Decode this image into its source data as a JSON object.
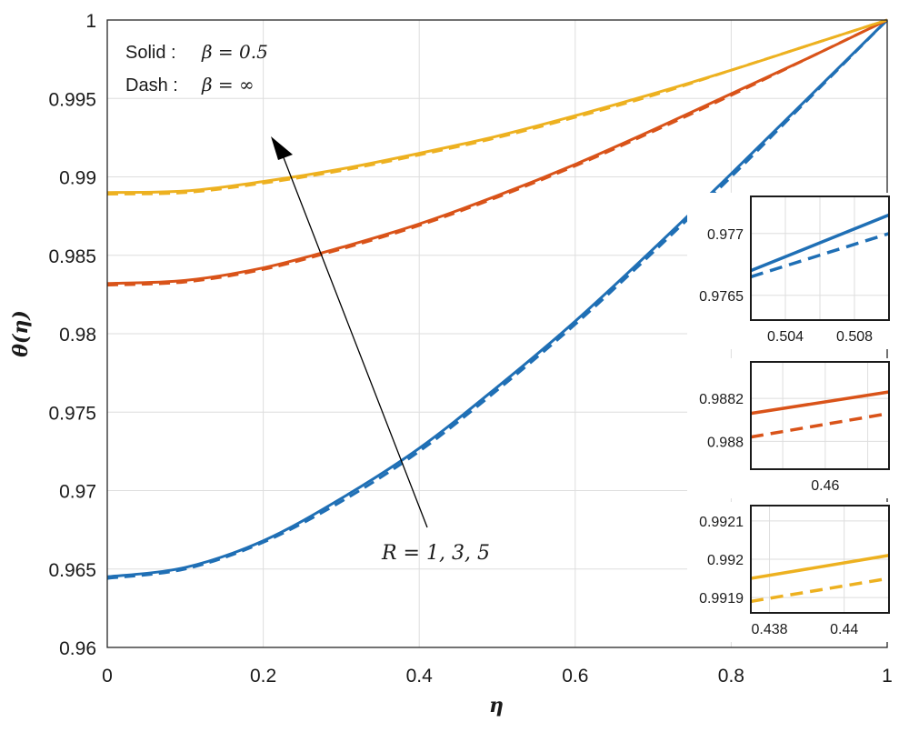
{
  "chart_data": {
    "type": "line",
    "title": "",
    "xlabel": "η",
    "ylabel": "θ(η)",
    "xlim": [
      0,
      1
    ],
    "ylim": [
      0.96,
      1
    ],
    "xticks": [
      "0",
      "0.2",
      "0.4",
      "0.6",
      "0.8",
      "1"
    ],
    "yticks": [
      "0.96",
      "0.965",
      "0.97",
      "0.975",
      "0.98",
      "0.985",
      "0.99",
      "0.995",
      "1"
    ],
    "grid": true,
    "legend": {
      "lines": [
        {
          "label": "Solid :",
          "value": "β = 0.5"
        },
        {
          "label": "Dash :",
          "value": "β = ∞"
        }
      ],
      "position": "top-left"
    },
    "annotation": {
      "text": "R = 1, 3, 5",
      "direction": "increasing R shifts curves upward"
    },
    "x": [
      0,
      0.1,
      0.2,
      0.3,
      0.4,
      0.5,
      0.6,
      0.7,
      0.8,
      0.9,
      1.0
    ],
    "series": [
      {
        "name": "R = 1, β = 0.5",
        "color": "#1f6fb5",
        "style": "solid",
        "values": [
          0.9645,
          0.9651,
          0.9668,
          0.9695,
          0.9727,
          0.9766,
          0.9808,
          0.9854,
          0.9902,
          0.9951,
          1.0
        ]
      },
      {
        "name": "R = 1, β = ∞",
        "color": "#1f6fb5",
        "style": "dash",
        "values": [
          0.9644,
          0.965,
          0.9667,
          0.9693,
          0.9725,
          0.9764,
          0.9806,
          0.9852,
          0.99,
          0.995,
          1.0
        ]
      },
      {
        "name": "R = 3, β = 0.5",
        "color": "#d95319",
        "style": "solid",
        "values": [
          0.9832,
          0.9834,
          0.9842,
          0.9855,
          0.987,
          0.9888,
          0.9908,
          0.993,
          0.9953,
          0.9976,
          1.0
        ]
      },
      {
        "name": "R = 3, β = ∞",
        "color": "#d95319",
        "style": "dash",
        "values": [
          0.9831,
          0.9833,
          0.9841,
          0.9854,
          0.9869,
          0.9887,
          0.9907,
          0.9929,
          0.9952,
          0.9976,
          1.0
        ]
      },
      {
        "name": "R = 5, β = 0.5",
        "color": "#edb120",
        "style": "solid",
        "values": [
          0.989,
          0.9891,
          0.9897,
          0.9905,
          0.9915,
          0.9926,
          0.9939,
          0.9953,
          0.9968,
          0.9984,
          1.0
        ]
      },
      {
        "name": "R = 5, β = ∞",
        "color": "#edb120",
        "style": "dash",
        "values": [
          0.9889,
          0.989,
          0.9896,
          0.9904,
          0.9914,
          0.9925,
          0.9938,
          0.9952,
          0.9968,
          0.9984,
          1.0
        ]
      }
    ],
    "insets": [
      {
        "xlim": [
          0.502,
          0.51
        ],
        "ylim": [
          0.9763,
          0.9773
        ],
        "xticks": [
          "0.504",
          "0.508"
        ],
        "yticks": [
          "0.9765",
          "0.977"
        ],
        "xtick_values": [
          0.504,
          0.508
        ],
        "ytick_values": [
          0.9765,
          0.977
        ],
        "grid_x": [
          0.504,
          0.506,
          0.508
        ],
        "grid_y": [
          0.9765,
          0.977
        ],
        "series": [
          {
            "color": "#1f6fb5",
            "style": "solid",
            "x": [
              0.502,
              0.51
            ],
            "values": [
              0.9767,
              0.97715
            ]
          },
          {
            "color": "#1f6fb5",
            "style": "dash",
            "x": [
              0.502,
              0.51
            ],
            "values": [
              0.97665,
              0.977
            ]
          }
        ]
      },
      {
        "xlim": [
          0.453,
          0.466
        ],
        "ylim": [
          0.98787,
          0.98837
        ],
        "xticks": [
          "0.46"
        ],
        "yticks": [
          "0.9882",
          "0.988"
        ],
        "xtick_values": [
          0.46
        ],
        "ytick_values": [
          0.9882,
          0.988
        ],
        "grid_x": [
          0.456,
          0.46,
          0.464
        ],
        "grid_y": [
          0.988,
          0.9882
        ],
        "series": [
          {
            "color": "#d95319",
            "style": "solid",
            "x": [
              0.453,
              0.466
            ],
            "values": [
              0.98813,
              0.98823
            ]
          },
          {
            "color": "#d95319",
            "style": "dash",
            "x": [
              0.453,
              0.466
            ],
            "values": [
              0.98802,
              0.98813
            ]
          }
        ]
      },
      {
        "xlim": [
          0.4375,
          0.4412
        ],
        "ylim": [
          0.99186,
          0.99214
        ],
        "xticks": [
          "0.438",
          "0.44"
        ],
        "yticks": [
          "0.9921",
          "0.992",
          "0.9919"
        ],
        "xtick_values": [
          0.438,
          0.44
        ],
        "ytick_values": [
          0.9921,
          0.992,
          0.9919
        ],
        "grid_x": [
          0.438,
          0.44
        ],
        "grid_y": [
          0.9919,
          0.992,
          0.9921
        ],
        "series": [
          {
            "color": "#edb120",
            "style": "solid",
            "x": [
              0.4375,
              0.4412
            ],
            "values": [
              0.99195,
              0.99201
            ]
          },
          {
            "color": "#edb120",
            "style": "dash",
            "x": [
              0.4375,
              0.4412
            ],
            "values": [
              0.99189,
              0.99195
            ]
          }
        ]
      }
    ]
  }
}
